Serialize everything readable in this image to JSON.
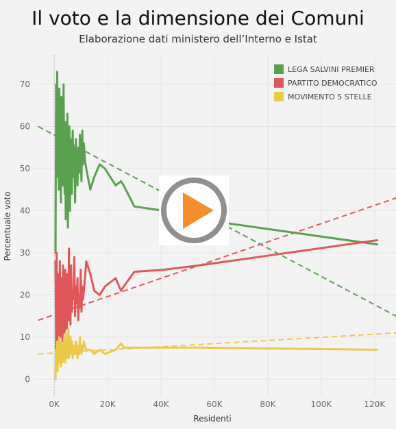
{
  "title": "Il voto e la dimensione dei Comuni",
  "subtitle": "Elaborazione dati ministero dell’Interno e Istat",
  "colors": {
    "lega": "#59a14f",
    "pd": "#e15759",
    "m5s": "#edc948",
    "grid": "#e4e4e4",
    "axis_text": "#666666",
    "play_ring": "#8f8f8f",
    "play_triangle": "#f28e2b"
  },
  "play_button": {
    "icon": "play-icon"
  },
  "chart_data": {
    "type": "line",
    "xlabel": "Residenti",
    "ylabel": "Percentuale voto",
    "xlim": [
      -8000,
      128000
    ],
    "ylim": [
      -4,
      77
    ],
    "xticks": [
      0,
      20000,
      40000,
      60000,
      80000,
      100000,
      120000
    ],
    "xtick_labels": [
      "0K",
      "20K",
      "40K",
      "60K",
      "80K",
      "100K",
      "120K"
    ],
    "yticks": [
      0,
      10,
      20,
      30,
      40,
      50,
      60,
      70
    ],
    "ytick_labels": [
      "0",
      "10",
      "20",
      "30",
      "40",
      "50",
      "60",
      "70"
    ],
    "grid": true,
    "legend_position": "top-right",
    "series": [
      {
        "name": "LEGA SALVINI PREMIER",
        "color": "#59a14f",
        "x": [
          500,
          700,
          900,
          1100,
          1300,
          1500,
          1700,
          1900,
          2100,
          2300,
          2500,
          2700,
          2900,
          3100,
          3300,
          3500,
          3700,
          3900,
          4100,
          4300,
          4500,
          4700,
          4900,
          5100,
          5300,
          5500,
          5700,
          5900,
          6100,
          6300,
          6600,
          6900,
          7200,
          7500,
          7800,
          8100,
          8400,
          8700,
          9000,
          9300,
          9600,
          9900,
          10200,
          10500,
          10800,
          11100,
          11500,
          12000,
          13500,
          15000,
          17000,
          19000,
          21000,
          23000,
          25000,
          26000,
          30000,
          41000,
          54000,
          121000
        ],
        "values": [
          30,
          70,
          48,
          73,
          52,
          66,
          45,
          69,
          55,
          62,
          42,
          67,
          50,
          64,
          46,
          70,
          53,
          44,
          61,
          38,
          58,
          49,
          63,
          36,
          55,
          47,
          60,
          40,
          57,
          52,
          44,
          59,
          48,
          55,
          42,
          57,
          50,
          46,
          55,
          49,
          58,
          53,
          47,
          59,
          51,
          56,
          52,
          50,
          45,
          48,
          51,
          50,
          48,
          46,
          47,
          46,
          41,
          40,
          38,
          32
        ]
      },
      {
        "name": "PARTITO DEMOCRATICO",
        "color": "#e15759",
        "x": [
          500,
          700,
          900,
          1100,
          1300,
          1500,
          1700,
          1900,
          2100,
          2300,
          2500,
          2700,
          2900,
          3100,
          3300,
          3500,
          3700,
          3900,
          4100,
          4300,
          4500,
          4700,
          4900,
          5100,
          5300,
          5500,
          5700,
          5900,
          6100,
          6300,
          6600,
          6900,
          7200,
          7500,
          7800,
          8100,
          8400,
          8700,
          9000,
          9300,
          9600,
          9900,
          10200,
          10500,
          10800,
          11100,
          11500,
          12000,
          13500,
          15000,
          17000,
          19000,
          21000,
          23000,
          25000,
          26000,
          30000,
          41000,
          54000,
          121000
        ],
        "values": [
          28,
          6,
          30,
          12,
          25,
          8,
          22,
          15,
          28,
          10,
          24,
          13,
          20,
          9,
          27,
          14,
          23,
          11,
          26,
          16,
          21,
          12,
          25,
          18,
          14,
          31,
          17,
          22,
          13,
          27,
          16,
          21,
          19,
          29,
          15,
          22,
          18,
          24,
          14,
          20,
          17,
          26,
          16,
          22,
          19,
          21,
          24,
          28,
          25,
          21,
          20,
          22,
          23,
          24,
          21,
          22,
          25.5,
          26,
          27,
          33
        ]
      },
      {
        "name": "MOVIMENTO 5 STELLE",
        "color": "#edc948",
        "x": [
          500,
          700,
          900,
          1100,
          1300,
          1500,
          1700,
          1900,
          2100,
          2300,
          2500,
          2700,
          2900,
          3100,
          3300,
          3500,
          3700,
          3900,
          4100,
          4300,
          4500,
          4700,
          4900,
          5100,
          5300,
          5500,
          5700,
          5900,
          6100,
          6300,
          6600,
          6900,
          7200,
          7500,
          7800,
          8100,
          8400,
          8700,
          9000,
          9300,
          9600,
          9900,
          10200,
          10500,
          10800,
          11100,
          11500,
          12000,
          13500,
          15000,
          17000,
          19000,
          21000,
          23000,
          25000,
          26000,
          30000,
          41000,
          54000,
          121000
        ],
        "values": [
          0,
          7,
          3,
          9,
          2,
          8,
          4,
          10,
          5,
          7,
          3,
          9,
          6,
          4,
          8,
          5,
          10,
          6,
          4,
          11,
          7,
          5,
          9,
          6,
          12,
          5,
          8,
          7,
          10,
          6,
          9,
          5,
          8,
          7,
          6,
          9,
          7,
          5,
          8,
          6,
          10,
          7,
          6,
          8,
          7,
          9,
          8,
          7,
          7,
          6,
          7,
          6,
          6.5,
          7,
          8.5,
          7.5,
          7.5,
          7.5,
          7.5,
          7
        ]
      }
    ],
    "trendlines": [
      {
        "series": "LEGA SALVINI PREMIER",
        "color": "#59a14f",
        "x": [
          -6000,
          128000
        ],
        "values": [
          60,
          15
        ]
      },
      {
        "series": "PARTITO DEMOCRATICO",
        "color": "#e15759",
        "x": [
          -6000,
          128000
        ],
        "values": [
          14,
          43
        ]
      },
      {
        "series": "MOVIMENTO 5 STELLE",
        "color": "#edc948",
        "x": [
          -6000,
          128000
        ],
        "values": [
          6,
          11
        ]
      }
    ]
  }
}
